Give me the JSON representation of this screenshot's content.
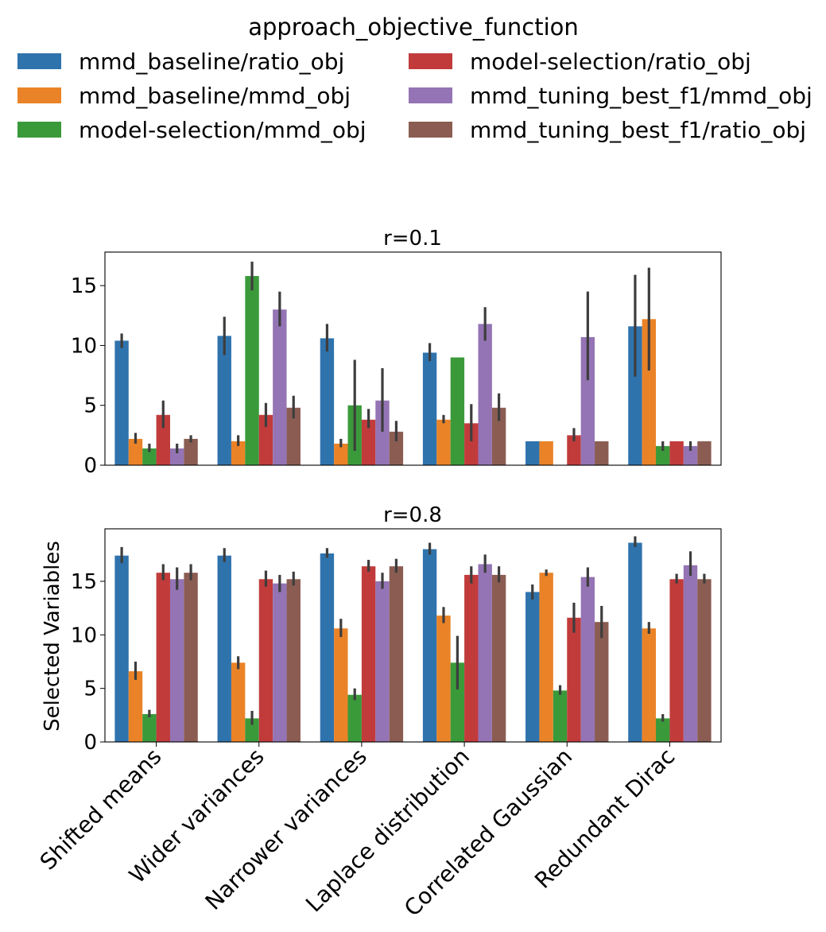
{
  "legend": {
    "title": "approach_objective_function",
    "entries": [
      {
        "label": "mmd_baseline/ratio_obj",
        "color": "#2f73ad"
      },
      {
        "label": "mmd_baseline/mmd_obj",
        "color": "#ea8327"
      },
      {
        "label": "model-selection/mmd_obj",
        "color": "#3a9a3a"
      },
      {
        "label": "model-selection/ratio_obj",
        "color": "#c13b3b"
      },
      {
        "label": "mmd_tuning_best_f1/mmd_obj",
        "color": "#9474b4"
      },
      {
        "label": "mmd_tuning_best_f1/ratio_obj",
        "color": "#8b5d52"
      }
    ]
  },
  "ylabel": "Selected Variables",
  "categories": [
    "Shifted means",
    "Wider variances",
    "Narrower variances",
    "Laplace distribution",
    "Correlated Gaussian",
    "Redundant Dirac"
  ],
  "chart_data": [
    {
      "type": "bar",
      "title": "r=0.1",
      "ylim": [
        0,
        17.8
      ],
      "yticks": [
        0,
        5,
        10,
        15
      ],
      "categories": [
        "Shifted means",
        "Wider variances",
        "Narrower variances",
        "Laplace distribution",
        "Correlated Gaussian",
        "Redundant Dirac"
      ],
      "series": [
        {
          "name": "mmd_baseline/ratio_obj",
          "values": [
            10.4,
            10.8,
            10.6,
            9.4,
            2.0,
            11.6
          ],
          "err_low": [
            9.8,
            9.2,
            9.5,
            8.7,
            2.0,
            7.4
          ],
          "err_high": [
            11.0,
            12.4,
            11.8,
            10.2,
            2.0,
            15.9
          ]
        },
        {
          "name": "mmd_baseline/mmd_obj",
          "values": [
            2.2,
            2.0,
            1.8,
            3.8,
            2.0,
            12.2
          ],
          "err_low": [
            1.8,
            1.6,
            1.5,
            3.5,
            2.0,
            7.9
          ],
          "err_high": [
            2.7,
            2.5,
            2.2,
            4.2,
            2.0,
            16.5
          ]
        },
        {
          "name": "model-selection/mmd_obj",
          "values": [
            1.4,
            15.8,
            5.0,
            9.0,
            null,
            1.6
          ],
          "err_low": [
            1.1,
            14.6,
            1.2,
            9.0,
            null,
            1.2
          ],
          "err_high": [
            1.8,
            17.0,
            8.8,
            9.0,
            null,
            2.0
          ]
        },
        {
          "name": "model-selection/ratio_obj",
          "values": [
            4.2,
            4.2,
            3.8,
            3.5,
            2.5,
            2.0
          ],
          "err_low": [
            3.1,
            3.2,
            3.1,
            2.0,
            2.0,
            2.0
          ],
          "err_high": [
            5.4,
            5.2,
            4.7,
            5.1,
            3.1,
            2.0
          ]
        },
        {
          "name": "mmd_tuning_best_f1/mmd_obj",
          "values": [
            1.4,
            13.0,
            5.4,
            11.8,
            10.7,
            1.6
          ],
          "err_low": [
            1.0,
            11.6,
            2.8,
            10.4,
            7.1,
            1.2
          ],
          "err_high": [
            1.8,
            14.5,
            8.1,
            13.2,
            14.5,
            2.0
          ]
        },
        {
          "name": "mmd_tuning_best_f1/ratio_obj",
          "values": [
            2.2,
            4.8,
            2.8,
            4.8,
            2.0,
            2.0
          ],
          "err_low": [
            1.9,
            3.9,
            2.0,
            3.7,
            2.0,
            2.0
          ],
          "err_high": [
            2.5,
            5.8,
            3.7,
            6.0,
            2.0,
            2.0
          ]
        }
      ]
    },
    {
      "type": "bar",
      "title": "r=0.8",
      "ylim": [
        0,
        19.9
      ],
      "yticks": [
        0,
        5,
        10,
        15
      ],
      "categories": [
        "Shifted means",
        "Wider variances",
        "Narrower variances",
        "Laplace distribution",
        "Correlated Gaussian",
        "Redundant Dirac"
      ],
      "series": [
        {
          "name": "mmd_baseline/ratio_obj",
          "values": [
            17.4,
            17.4,
            17.6,
            18.0,
            14.0,
            18.6
          ],
          "err_low": [
            16.7,
            16.8,
            17.2,
            17.5,
            13.3,
            18.2
          ],
          "err_high": [
            18.2,
            18.1,
            18.1,
            18.6,
            14.7,
            19.2
          ]
        },
        {
          "name": "mmd_baseline/mmd_obj",
          "values": [
            6.6,
            7.4,
            10.6,
            11.8,
            15.8,
            10.6
          ],
          "err_low": [
            5.8,
            6.8,
            9.8,
            11.1,
            15.5,
            10.1
          ],
          "err_high": [
            7.5,
            8.0,
            11.5,
            12.6,
            16.1,
            11.2
          ]
        },
        {
          "name": "model-selection/mmd_obj",
          "values": [
            2.6,
            2.2,
            4.4,
            7.4,
            4.8,
            2.2
          ],
          "err_low": [
            2.3,
            1.6,
            3.9,
            4.9,
            4.4,
            1.9
          ],
          "err_high": [
            3.0,
            2.9,
            5.0,
            9.9,
            5.3,
            2.6
          ]
        },
        {
          "name": "model-selection/ratio_obj",
          "values": [
            15.8,
            15.2,
            16.4,
            15.6,
            11.6,
            15.2
          ],
          "err_low": [
            15.1,
            14.5,
            15.9,
            14.8,
            10.2,
            14.8
          ],
          "err_high": [
            16.6,
            16.0,
            17.0,
            16.4,
            13.0,
            15.7
          ]
        },
        {
          "name": "mmd_tuning_best_f1/mmd_obj",
          "values": [
            15.2,
            14.8,
            15.0,
            16.6,
            15.4,
            16.5
          ],
          "err_low": [
            14.2,
            14.0,
            14.3,
            15.8,
            14.5,
            15.5
          ],
          "err_high": [
            16.3,
            15.6,
            15.8,
            17.5,
            16.3,
            17.8
          ]
        },
        {
          "name": "mmd_tuning_best_f1/ratio_obj",
          "values": [
            15.8,
            15.2,
            16.4,
            15.6,
            11.2,
            15.2
          ],
          "err_low": [
            15.1,
            14.6,
            15.8,
            14.9,
            9.7,
            14.8
          ],
          "err_high": [
            16.6,
            15.9,
            17.1,
            16.4,
            12.7,
            15.7
          ]
        }
      ]
    }
  ]
}
